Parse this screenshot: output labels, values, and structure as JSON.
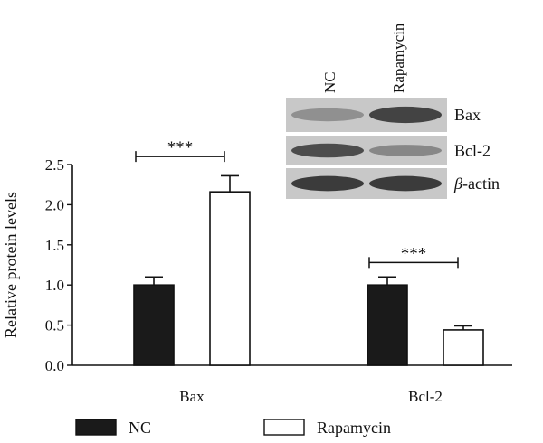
{
  "chart_data": {
    "type": "bar",
    "ylabel": "Relative protein levels",
    "ylim": [
      0,
      2.5
    ],
    "yticks": [
      "0.0",
      "0.5",
      "1.0",
      "1.5",
      "2.0",
      "2.5"
    ],
    "categories": [
      "Bax",
      "Bcl-2"
    ],
    "series": [
      {
        "name": "NC",
        "values": [
          1.0,
          1.0
        ],
        "errors": [
          0.1,
          0.1
        ],
        "color": "#1a1a1a"
      },
      {
        "name": "Rapamycin",
        "values": [
          2.16,
          0.44
        ],
        "errors": [
          0.2,
          0.05
        ],
        "color": "#ffffff"
      }
    ],
    "significance": [
      "***",
      "***"
    ],
    "legend_position": "bottom",
    "inset_blot": {
      "lanes": [
        "NC",
        "Rapamycin"
      ],
      "bands": [
        {
          "label": "Bax",
          "intensity": [
            0.45,
            0.9
          ]
        },
        {
          "label": "Bcl-2",
          "intensity": [
            0.85,
            0.5
          ]
        },
        {
          "label_prefix": "β",
          "label_suffix": "-actin",
          "intensity": [
            0.95,
            0.95
          ]
        }
      ]
    }
  }
}
